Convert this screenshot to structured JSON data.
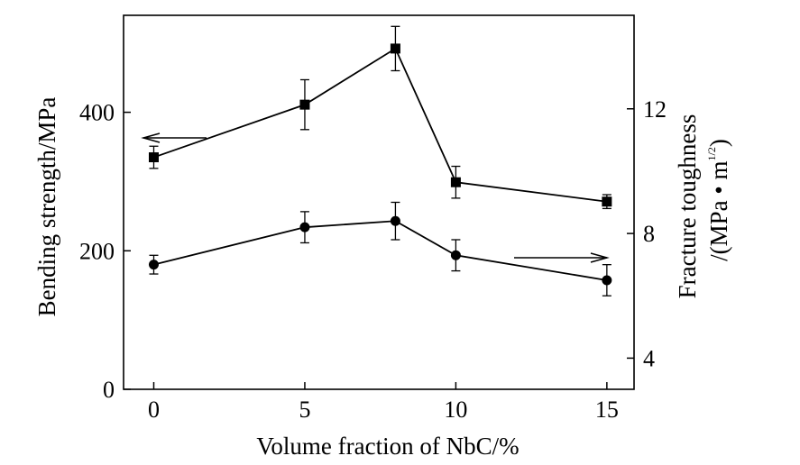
{
  "chart_data": {
    "type": "line",
    "xlabel": "Volume fraction of NbC/%",
    "ylabel_left": "Bending strength/MPa",
    "ylabel_right_line1": "Fracture toughness",
    "ylabel_right_line2_prefix": "/(MPa • m",
    "ylabel_right_line2_exp": "1/2",
    "ylabel_right_line2_suffix": ")",
    "x": [
      0,
      5,
      8,
      10,
      15
    ],
    "xlim": [
      -1,
      15.9
    ],
    "ylim_left": [
      0,
      540
    ],
    "ylim_right": [
      3,
      15
    ],
    "x_ticks": [
      0,
      5,
      10,
      15
    ],
    "y_left_ticks": [
      0,
      200,
      400
    ],
    "y_right_ticks": [
      4,
      8,
      12
    ],
    "grid": false,
    "series": [
      {
        "axis": "left",
        "marker": "square",
        "values": [
          335,
          411,
          492,
          299,
          271
        ],
        "error": [
          16,
          36,
          32,
          23,
          10
        ]
      },
      {
        "axis": "right",
        "marker": "circle",
        "values": [
          7.0,
          8.2,
          8.4,
          7.3,
          6.5
        ],
        "error": [
          0.3,
          0.5,
          0.6,
          0.5,
          0.5
        ]
      }
    ],
    "annotations": [
      {
        "type": "arrow",
        "direction": "left",
        "target_axis": "left"
      },
      {
        "type": "arrow",
        "direction": "right",
        "target_axis": "right"
      }
    ]
  }
}
